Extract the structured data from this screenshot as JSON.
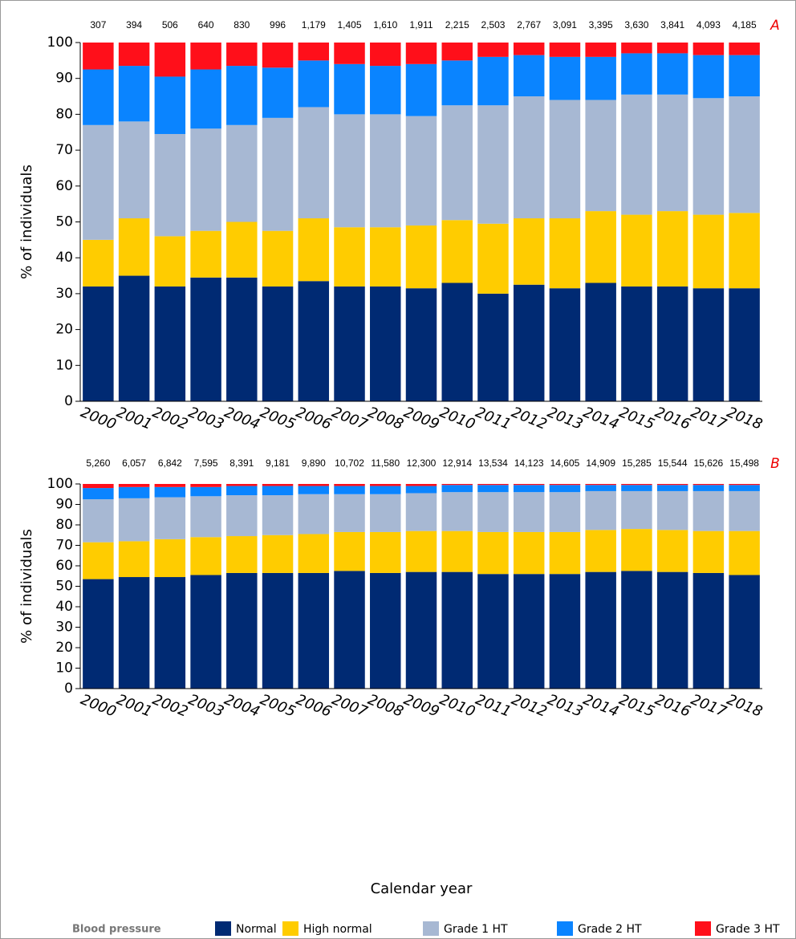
{
  "chart_data": [
    {
      "type": "stacked_bar",
      "title": "A",
      "y_label": "% of individuals",
      "categories": [
        "2000",
        "2001",
        "2002",
        "2003",
        "2004",
        "2005",
        "2006",
        "2007",
        "2008",
        "2009",
        "2010",
        "2011",
        "2012",
        "2013",
        "2014",
        "2015",
        "2016",
        "2017",
        "2018"
      ],
      "n_labels": [
        "307",
        "394",
        "506",
        "640",
        "830",
        "996",
        "1,179",
        "1,405",
        "1,610",
        "1,911",
        "2,215",
        "2,503",
        "2,767",
        "3,091",
        "3,395",
        "3,630",
        "3,841",
        "4,093",
        "4,185"
      ],
      "ylim": [
        0,
        100
      ],
      "yticks": [
        0,
        10,
        20,
        30,
        40,
        50,
        60,
        70,
        80,
        90,
        100
      ],
      "legend_title": "Blood pressure",
      "series": [
        {
          "name": "Normal",
          "color": "#002a73",
          "values": [
            32,
            35,
            32,
            34.5,
            34.5,
            32,
            33.5,
            32,
            32,
            31.5,
            33,
            30,
            32.5,
            31.5,
            33,
            32,
            32,
            31.5,
            31.5
          ]
        },
        {
          "name": "High normal",
          "color": "#ffcc00",
          "values": [
            13,
            16,
            14,
            13,
            15.5,
            15.5,
            17.5,
            16.5,
            16.5,
            17.5,
            17.5,
            19.5,
            18.5,
            19.5,
            20,
            20,
            21,
            20.5,
            21
          ]
        },
        {
          "name": "Grade 1 HT",
          "color": "#a7b8d3",
          "values": [
            32,
            27,
            28.5,
            28.5,
            27,
            31.5,
            31,
            31.5,
            31.5,
            30.5,
            32,
            33,
            34,
            33,
            31,
            33.5,
            32.5,
            32.5,
            32.5
          ]
        },
        {
          "name": "Grade 2 HT",
          "color": "#0a84ff",
          "values": [
            15.5,
            15.5,
            16,
            16.5,
            16.5,
            14,
            13,
            14,
            13.5,
            14.5,
            12.5,
            13.5,
            11.5,
            12,
            12,
            11.5,
            11.5,
            12,
            11.5
          ]
        },
        {
          "name": "Grade 3 HT",
          "color": "#ff0f1a",
          "values": [
            7.5,
            6.5,
            9.5,
            7.5,
            6.5,
            7,
            5,
            6,
            6.5,
            6,
            5,
            4,
            3.5,
            4,
            4,
            3,
            3,
            3.5,
            3.5
          ]
        }
      ]
    },
    {
      "type": "stacked_bar",
      "title": "B",
      "y_label": "% of individuals",
      "x_label": "Calendar year",
      "categories": [
        "2000",
        "2001",
        "2002",
        "2003",
        "2004",
        "2005",
        "2006",
        "2007",
        "2008",
        "2009",
        "2010",
        "2011",
        "2012",
        "2013",
        "2014",
        "2015",
        "2016",
        "2017",
        "2018"
      ],
      "n_labels": [
        "5,260",
        "6,057",
        "6,842",
        "7,595",
        "8,391",
        "9,181",
        "9,890",
        "10,702",
        "11,580",
        "12,300",
        "12,914",
        "13,534",
        "14,123",
        "14,605",
        "14,909",
        "15,285",
        "15,544",
        "15,626",
        "15,498"
      ],
      "ylim": [
        0,
        100
      ],
      "yticks": [
        0,
        10,
        20,
        30,
        40,
        50,
        60,
        70,
        80,
        90,
        100
      ],
      "series": [
        {
          "name": "Normal",
          "color": "#002a73",
          "values": [
            53.5,
            54.5,
            54.5,
            55.5,
            56.5,
            56.5,
            56.5,
            57.5,
            56.5,
            57,
            57,
            56,
            56,
            56,
            57,
            57.5,
            57,
            56.5,
            55.5
          ]
        },
        {
          "name": "High normal",
          "color": "#ffcc00",
          "values": [
            18,
            17.5,
            18.5,
            18.5,
            18,
            18.5,
            19,
            19,
            20,
            20,
            20,
            20.5,
            20.5,
            20.5,
            20.5,
            20.5,
            20.5,
            20.5,
            21.5
          ]
        },
        {
          "name": "Grade 1 HT",
          "color": "#a7b8d3",
          "values": [
            21,
            21,
            20.5,
            20,
            20,
            19.5,
            19.5,
            18.5,
            18.5,
            18.5,
            19,
            19.5,
            19.5,
            19.5,
            19,
            18.5,
            19,
            19.5,
            19.5
          ]
        },
        {
          "name": "Grade 2 HT",
          "color": "#0a84ff",
          "values": [
            5.5,
            5.5,
            5,
            4.5,
            4.5,
            4.5,
            4,
            4,
            4,
            3.5,
            3.5,
            3.5,
            3.5,
            3.5,
            3,
            3,
            3,
            3,
            3
          ]
        },
        {
          "name": "Grade 3 HT",
          "color": "#ff0f1a",
          "values": [
            2,
            1.5,
            1.5,
            1.5,
            1,
            1,
            1,
            1,
            1,
            1,
            0.5,
            0.5,
            0.5,
            0.5,
            0.5,
            0.5,
            0.5,
            0.5,
            0.5
          ]
        }
      ]
    }
  ]
}
